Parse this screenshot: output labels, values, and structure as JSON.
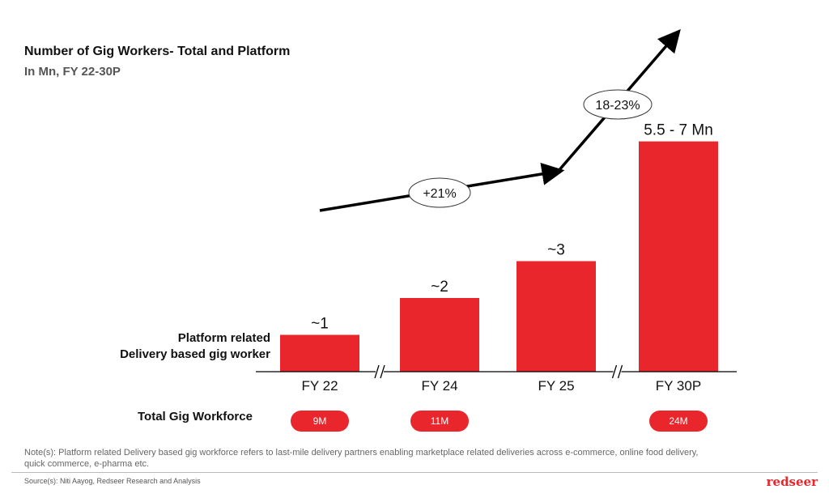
{
  "header": {
    "title": "Number of Gig Workers- Total and Platform",
    "subtitle": "In Mn, FY 22-30P"
  },
  "row_labels": {
    "platform_line1": "Platform related",
    "platform_line2": "Delivery based gig worker",
    "total": "Total Gig Workforce"
  },
  "chart_data": {
    "type": "bar",
    "categories": [
      "FY 22",
      "FY 24",
      "FY 25",
      "FY 30P"
    ],
    "values": [
      1,
      2,
      3,
      6.25
    ],
    "value_labels": [
      "~1",
      "~2",
      "~3",
      "5.5 - 7 Mn"
    ],
    "bar_color": "#e8262b",
    "axis_breaks_between": [
      [
        "FY 22",
        "FY 24"
      ],
      [
        "FY 25",
        "FY 30P"
      ]
    ],
    "growth_annotations": [
      {
        "label": "+21%",
        "from": "FY 22",
        "to": "FY 25"
      },
      {
        "label": "18-23%",
        "from": "FY 25",
        "to": "FY 30P"
      }
    ],
    "total_gig_workforce": [
      {
        "category": "FY 22",
        "label": "9M"
      },
      {
        "category": "FY 24",
        "label": "11M"
      },
      {
        "category": "FY 30P",
        "label": "24M"
      }
    ]
  },
  "footer": {
    "note": "Note(s): Platform related Delivery based gig workforce refers to last-mile delivery partners enabling marketplace related deliveries across e-commerce, online food delivery, quick commerce, e-pharma etc.",
    "source": "Source(s):  Niti Aayog, Redseer Research and Analysis",
    "brand": "redseer"
  }
}
